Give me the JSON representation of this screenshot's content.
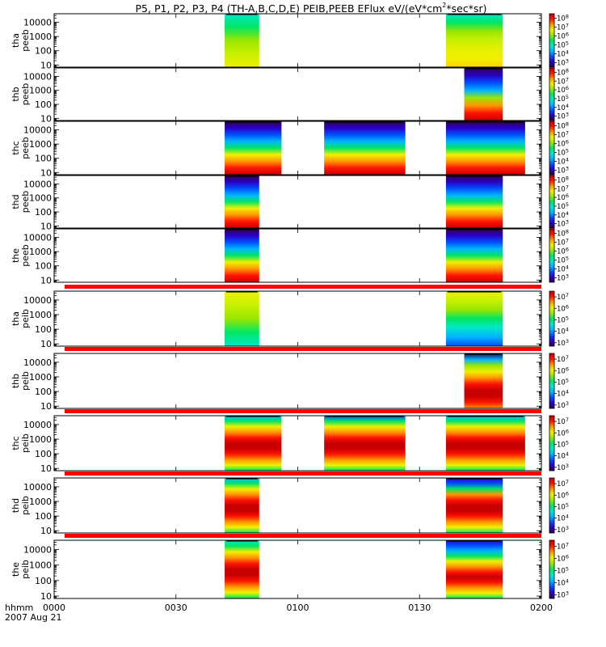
{
  "chart_data": {
    "type": "heatmap",
    "title": "P5, P1, P2, P3, P4 (TH-A,B,C,D,E) PEIB,PEEB EFlux eV/(eV*cm^2*sec*sr)",
    "title_main": "P5, P1, P2, P3, P4 (TH-A,B,C,D,E) PEIB,PEEB EFlux eV/(eV*cm",
    "title_sup": "2",
    "title_end": "*sec*sr)",
    "x_axis": {
      "label_line1": "hhmm",
      "label_line2": "2007 Aug 21",
      "tick_labels": [
        "0000",
        "0030",
        "0100",
        "0130",
        "0200"
      ],
      "tick_minutes": [
        0,
        30,
        60,
        90,
        120
      ],
      "range_minutes": [
        0,
        120
      ]
    },
    "y_tick_labels": [
      "10",
      "100",
      "1000",
      "10000"
    ],
    "y_tick_values": [
      10,
      100,
      1000,
      10000
    ],
    "colormap": [
      "#30004a",
      "#2a00c8",
      "#0050ff",
      "#00b4ff",
      "#00e6c8",
      "#00e664",
      "#9be600",
      "#f0f000",
      "#ff9600",
      "#ff1400",
      "#c80000"
    ],
    "bar_color": "#ff0000",
    "panels": [
      {
        "probe": "tha",
        "product": "peeb",
        "ymin": 7,
        "ymax": 40000,
        "cbar": {
          "range": [
            2.5,
            8.5
          ],
          "labels": [
            {
              "exp": "3",
              "v": 3
            },
            {
              "exp": "4",
              "v": 4
            },
            {
              "exp": "5",
              "v": 5
            },
            {
              "exp": "6",
              "v": 6
            },
            {
              "exp": "7",
              "v": 7
            },
            {
              "exp": "8",
              "v": 8
            }
          ]
        },
        "intervals": [
          {
            "start": 42,
            "end": 50.5,
            "cols": [
              "#f0f000",
              "#c8f000",
              "#9be600",
              "#00e664",
              "#00e6c8"
            ],
            "fill": true
          },
          {
            "start": 96.5,
            "end": 110.5,
            "cols": [
              "#ffd200",
              "#f0f000",
              "#e6f000",
              "#c8f000",
              "#9be600",
              "#00e664",
              "#00e6c8"
            ],
            "fill": true
          }
        ]
      },
      {
        "probe": "thb",
        "product": "peeb",
        "ymin": 7,
        "ymax": 40000,
        "cbar": {
          "range": [
            2.5,
            8.5
          ],
          "labels": [
            {
              "exp": "3",
              "v": 3
            },
            {
              "exp": "4",
              "v": 4
            },
            {
              "exp": "5",
              "v": 5
            },
            {
              "exp": "6",
              "v": 6
            },
            {
              "exp": "7",
              "v": 7
            },
            {
              "exp": "8",
              "v": 8
            }
          ]
        },
        "intervals": [
          {
            "start": 101,
            "end": 110.5,
            "cols": [
              "#c80000",
              "#ff1400",
              "#ff9600",
              "#9be600",
              "#00b4ff",
              "#0050ff",
              "#2a00c8",
              "#30004a"
            ],
            "fill": true
          }
        ]
      },
      {
        "probe": "thc",
        "product": "peeb",
        "ymin": 7,
        "ymax": 40000,
        "cbar": {
          "range": [
            2.5,
            8.5
          ],
          "labels": [
            {
              "exp": "3",
              "v": 3
            },
            {
              "exp": "4",
              "v": 4
            },
            {
              "exp": "5",
              "v": 5
            },
            {
              "exp": "6",
              "v": 6
            },
            {
              "exp": "7",
              "v": 7
            },
            {
              "exp": "8",
              "v": 8
            }
          ]
        },
        "intervals": [
          {
            "start": 42,
            "end": 56,
            "cols": [
              "#c80000",
              "#ff1400",
              "#ff9600",
              "#f0f000",
              "#00e664",
              "#00b4ff",
              "#0050ff",
              "#2a00c8",
              "#30004a"
            ],
            "fill": true
          },
          {
            "start": 66.5,
            "end": 86.5,
            "cols": [
              "#c80000",
              "#ff1400",
              "#ff9600",
              "#f0f000",
              "#00e664",
              "#00b4ff",
              "#0050ff",
              "#2a00c8",
              "#30004a"
            ],
            "fill": true
          },
          {
            "start": 96.5,
            "end": 116,
            "cols": [
              "#c80000",
              "#ff1400",
              "#ff9600",
              "#f0f000",
              "#00e664",
              "#00b4ff",
              "#0050ff",
              "#2a00c8",
              "#30004a"
            ],
            "fill": true
          }
        ]
      },
      {
        "probe": "thd",
        "product": "peeb",
        "ymin": 7,
        "ymax": 40000,
        "cbar": {
          "range": [
            2.5,
            8.5
          ],
          "labels": [
            {
              "exp": "3",
              "v": 3
            },
            {
              "exp": "4",
              "v": 4
            },
            {
              "exp": "5",
              "v": 5
            },
            {
              "exp": "6",
              "v": 6
            },
            {
              "exp": "7",
              "v": 7
            },
            {
              "exp": "8",
              "v": 8
            }
          ]
        },
        "intervals": [
          {
            "start": 42,
            "end": 50.5,
            "cols": [
              "#c80000",
              "#ff1400",
              "#ff9600",
              "#f0f000",
              "#00e664",
              "#00b4ff",
              "#0050ff",
              "#2a00c8",
              "#30004a"
            ],
            "fill": true
          },
          {
            "start": 96.5,
            "end": 110.5,
            "cols": [
              "#c80000",
              "#ff1400",
              "#ff9600",
              "#f0f000",
              "#00e664",
              "#00b4ff",
              "#0050ff",
              "#2a00c8",
              "#30004a"
            ],
            "fill": true
          }
        ]
      },
      {
        "probe": "the",
        "product": "peeb",
        "ymin": 7,
        "ymax": 40000,
        "cbar": {
          "range": [
            2.5,
            8.5
          ],
          "labels": [
            {
              "exp": "3",
              "v": 3
            },
            {
              "exp": "4",
              "v": 4
            },
            {
              "exp": "5",
              "v": 5
            },
            {
              "exp": "6",
              "v": 6
            },
            {
              "exp": "7",
              "v": 7
            },
            {
              "exp": "8",
              "v": 8
            }
          ]
        },
        "intervals": [
          {
            "start": 42,
            "end": 50.5,
            "cols": [
              "#c80000",
              "#ff1400",
              "#ff9600",
              "#f0f000",
              "#00e664",
              "#00b4ff",
              "#0050ff",
              "#2a00c8",
              "#30004a"
            ],
            "fill": true
          },
          {
            "start": 96.5,
            "end": 110.5,
            "cols": [
              "#c80000",
              "#ff1400",
              "#ff9600",
              "#f0f000",
              "#00e664",
              "#00b4ff",
              "#0050ff",
              "#2a00c8",
              "#30004a"
            ],
            "fill": true
          }
        ]
      },
      {
        "probe": "tha",
        "product": "peib",
        "ymin": 7,
        "ymax": 40000,
        "bar_above": true,
        "cbar": {
          "range": [
            2.7,
            7.5
          ],
          "labels": [
            {
              "exp": "3",
              "v": 3
            },
            {
              "exp": "4",
              "v": 4
            },
            {
              "exp": "5",
              "v": 5
            },
            {
              "exp": "6",
              "v": 6
            },
            {
              "exp": "7",
              "v": 7
            }
          ]
        },
        "intervals": [
          {
            "start": 42,
            "end": 50.5,
            "cols": [
              "#00e6c8",
              "#00e664",
              "#9be600",
              "#c8f000",
              "#f0f000"
            ],
            "fill": true
          },
          {
            "start": 96.5,
            "end": 110.5,
            "cols": [
              "#0050ff",
              "#00b4ff",
              "#00e6c8",
              "#00e664",
              "#9be600",
              "#c8f000",
              "#f0f000"
            ],
            "fill": true
          }
        ]
      },
      {
        "probe": "thb",
        "product": "peib",
        "ymin": 7,
        "ymax": 40000,
        "bar_above": true,
        "cbar": {
          "range": [
            2.7,
            7.5
          ],
          "labels": [
            {
              "exp": "3",
              "v": 3
            },
            {
              "exp": "4",
              "v": 4
            },
            {
              "exp": "5",
              "v": 5
            },
            {
              "exp": "6",
              "v": 6
            },
            {
              "exp": "7",
              "v": 7
            }
          ]
        },
        "intervals": [
          {
            "start": 101,
            "end": 110.5,
            "cols": [
              "#ff9600",
              "#ff1400",
              "#c80000",
              "#c80000",
              "#ff1400",
              "#ff9600",
              "#f0f000",
              "#9be600",
              "#00b4ff",
              "#30004a"
            ],
            "fill": true
          }
        ]
      },
      {
        "probe": "thc",
        "product": "peib",
        "ymin": 7,
        "ymax": 40000,
        "bar_above": true,
        "cbar": {
          "range": [
            2.7,
            7.5
          ],
          "labels": [
            {
              "exp": "3",
              "v": 3
            },
            {
              "exp": "4",
              "v": 4
            },
            {
              "exp": "5",
              "v": 5
            },
            {
              "exp": "6",
              "v": 6
            },
            {
              "exp": "7",
              "v": 7
            }
          ]
        },
        "intervals": [
          {
            "start": 42,
            "end": 56,
            "cols": [
              "#00e664",
              "#f0f000",
              "#ff9600",
              "#ff1400",
              "#c80000",
              "#c80000",
              "#ff1400",
              "#ff9600",
              "#f0f000",
              "#00e664",
              "#00b4ff"
            ],
            "fill": true
          },
          {
            "start": 66.5,
            "end": 86.5,
            "cols": [
              "#00e664",
              "#f0f000",
              "#ff9600",
              "#ff1400",
              "#c80000",
              "#c80000",
              "#ff1400",
              "#ff9600",
              "#f0f000",
              "#00e664",
              "#0050ff"
            ],
            "fill": true
          },
          {
            "start": 96.5,
            "end": 116,
            "cols": [
              "#00e664",
              "#f0f000",
              "#ff9600",
              "#ff1400",
              "#c80000",
              "#c80000",
              "#ff1400",
              "#ff9600",
              "#f0f000",
              "#00e664",
              "#00b4ff"
            ],
            "fill": true
          }
        ]
      },
      {
        "probe": "thd",
        "product": "peib",
        "ymin": 7,
        "ymax": 40000,
        "bar_above": true,
        "cbar": {
          "range": [
            2.7,
            7.5
          ],
          "labels": [
            {
              "exp": "3",
              "v": 3
            },
            {
              "exp": "4",
              "v": 4
            },
            {
              "exp": "5",
              "v": 5
            },
            {
              "exp": "6",
              "v": 6
            },
            {
              "exp": "7",
              "v": 7
            }
          ]
        },
        "intervals": [
          {
            "start": 42,
            "end": 50.5,
            "cols": [
              "#00e664",
              "#f0f000",
              "#ff9600",
              "#ff1400",
              "#c80000",
              "#c80000",
              "#ff1400",
              "#ff9600",
              "#f0f000",
              "#00e664",
              "#00b4ff"
            ],
            "fill": true
          },
          {
            "start": 96.5,
            "end": 110.5,
            "cols": [
              "#00e664",
              "#f0f000",
              "#ff9600",
              "#ff1400",
              "#c80000",
              "#c80000",
              "#ff1400",
              "#ff9600",
              "#00e664",
              "#0050ff",
              "#2a00c8"
            ],
            "fill": true
          }
        ]
      },
      {
        "probe": "the",
        "product": "peib",
        "ymin": 7,
        "ymax": 40000,
        "bar_above": true,
        "cbar": {
          "range": [
            2.7,
            7.5
          ],
          "labels": [
            {
              "exp": "3",
              "v": 3
            },
            {
              "exp": "4",
              "v": 4
            },
            {
              "exp": "5",
              "v": 5
            },
            {
              "exp": "6",
              "v": 6
            },
            {
              "exp": "7",
              "v": 7
            }
          ]
        },
        "intervals": [
          {
            "start": 42,
            "end": 50.5,
            "cols": [
              "#00e664",
              "#f0f000",
              "#ff9600",
              "#ff1400",
              "#c80000",
              "#c80000",
              "#ff1400",
              "#ff9600",
              "#f0f000",
              "#00e664",
              "#00e6c8"
            ],
            "fill": true
          },
          {
            "start": 96.5,
            "end": 110.5,
            "cols": [
              "#00e664",
              "#f0f000",
              "#ff9600",
              "#ff1400",
              "#c80000",
              "#ff1400",
              "#ff9600",
              "#f0f000",
              "#00e664",
              "#00b4ff",
              "#0050ff",
              "#2a00c8"
            ],
            "fill": true
          }
        ]
      }
    ]
  }
}
